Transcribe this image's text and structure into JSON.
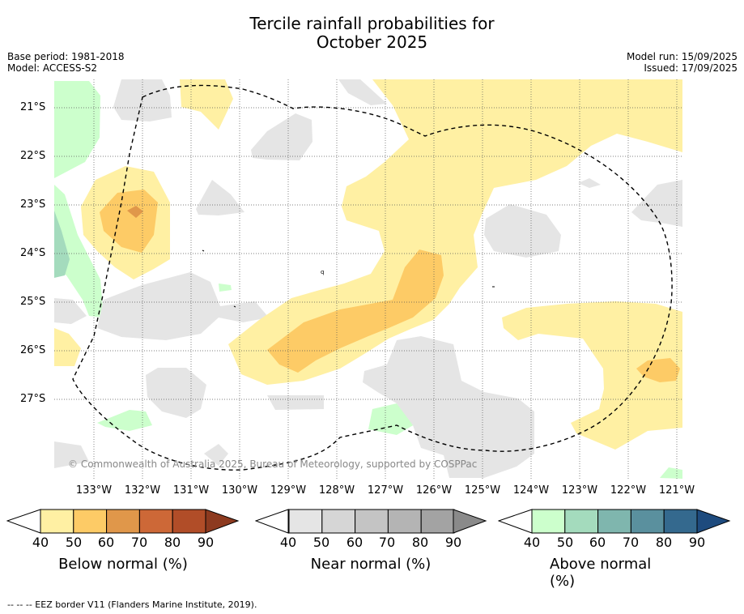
{
  "title_line1": "Tercile rainfall probabilities for",
  "title_line2": "October 2025",
  "base_period": "Base period: 1981-2018",
  "model": "Model: ACCESS-S2",
  "model_run": "Model run: 15/09/2025",
  "issued": "Issued: 17/09/2025",
  "lat_labels": [
    "21°S",
    "22°S",
    "23°S",
    "24°S",
    "25°S",
    "26°S",
    "27°S"
  ],
  "lon_labels": [
    "133°W",
    "132°W",
    "131°W",
    "130°W",
    "129°W",
    "128°W",
    "127°W",
    "126°W",
    "125°W",
    "124°W",
    "123°W",
    "122°W",
    "121°W"
  ],
  "copyright": "© Commonwealth of Australia 2025, Bureau of Meteorology, supported by COSPPac",
  "colorbars": [
    {
      "title": "Below normal (%)",
      "ticks": [
        "40",
        "50",
        "60",
        "70",
        "80",
        "90"
      ],
      "colors": [
        "#fff0a3",
        "#fdcb66",
        "#e0974a",
        "#cd6837",
        "#b14d28",
        "#8d3a1f"
      ]
    },
    {
      "title": "Near normal (%)",
      "ticks": [
        "40",
        "50",
        "60",
        "70",
        "80",
        "90"
      ],
      "colors": [
        "#e5e5e5",
        "#d6d6d6",
        "#c4c4c4",
        "#b4b4b4",
        "#a3a3a3",
        "#8a8a8a"
      ]
    },
    {
      "title": "Above normal (%)",
      "ticks": [
        "40",
        "50",
        "60",
        "70",
        "80",
        "90"
      ],
      "colors": [
        "#ccffcc",
        "#a4dbbd",
        "#7fb6ae",
        "#5a909e",
        "#34698e",
        "#1e4b7e"
      ]
    }
  ],
  "footnote": "--  --  -- EEZ border V11 (Flanders Marine Institute, 2019)."
}
